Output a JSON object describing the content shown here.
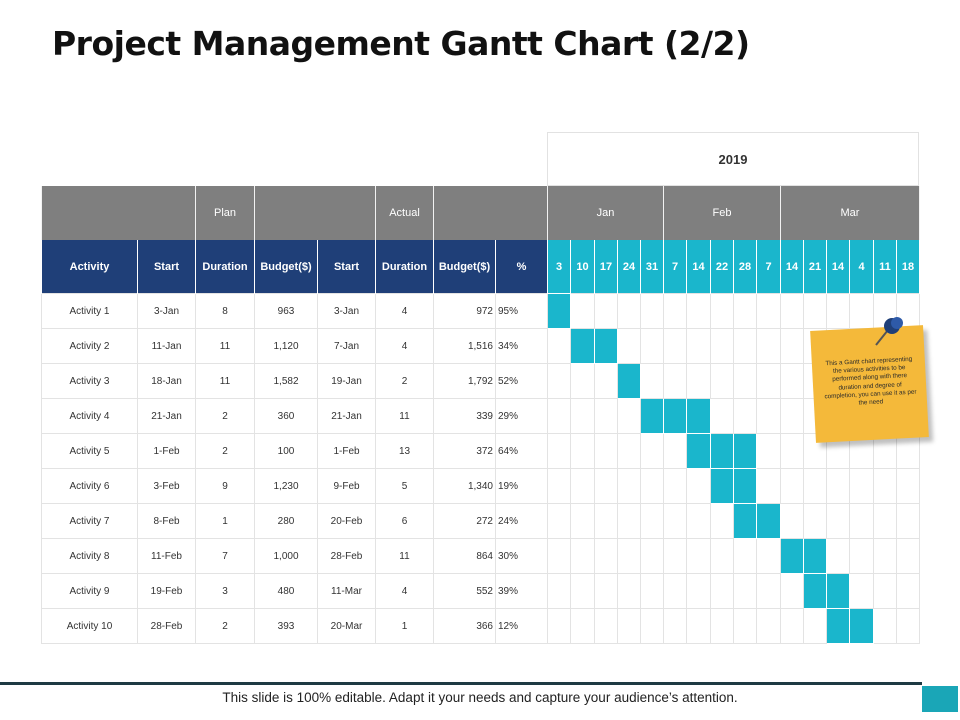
{
  "title": "Project Management Gantt Chart (2/2)",
  "year": "2019",
  "groups": {
    "plan": "Plan",
    "actual": "Actual"
  },
  "months": [
    "Jan",
    "Feb",
    "Mar"
  ],
  "columns": [
    "Activity",
    "Start",
    "Duration",
    "Budget($)",
    "Start",
    "Duration",
    "Budget($)",
    "%"
  ],
  "weeks": [
    "3",
    "10",
    "17",
    "24",
    "31",
    "7",
    "14",
    "22",
    "28",
    "7",
    "14",
    "21",
    "14",
    "4",
    "11",
    "18"
  ],
  "rows": [
    {
      "activity": "Activity 1",
      "plan_start": "3-Jan",
      "plan_duration": "8",
      "plan_budget": "963",
      "actual_start": "3-Jan",
      "actual_duration": "4",
      "actual_budget": "972",
      "pct": "95%",
      "filled": [
        0
      ]
    },
    {
      "activity": "Activity 2",
      "plan_start": "11-Jan",
      "plan_duration": "11",
      "plan_budget": "1,120",
      "actual_start": "7-Jan",
      "actual_duration": "4",
      "actual_budget": "1,516",
      "pct": "34%",
      "filled": [
        1,
        2
      ]
    },
    {
      "activity": "Activity 3",
      "plan_start": "18-Jan",
      "plan_duration": "11",
      "plan_budget": "1,582",
      "actual_start": "19-Jan",
      "actual_duration": "2",
      "actual_budget": "1,792",
      "pct": "52%",
      "filled": [
        3
      ]
    },
    {
      "activity": "Activity 4",
      "plan_start": "21-Jan",
      "plan_duration": "2",
      "plan_budget": "360",
      "actual_start": "21-Jan",
      "actual_duration": "11",
      "actual_budget": "339",
      "pct": "29%",
      "filled": [
        4,
        5,
        6
      ]
    },
    {
      "activity": "Activity 5",
      "plan_start": "1-Feb",
      "plan_duration": "2",
      "plan_budget": "100",
      "actual_start": "1-Feb",
      "actual_duration": "13",
      "actual_budget": "372",
      "pct": "64%",
      "filled": [
        6,
        7,
        8
      ]
    },
    {
      "activity": "Activity 6",
      "plan_start": "3-Feb",
      "plan_duration": "9",
      "plan_budget": "1,230",
      "actual_start": "9-Feb",
      "actual_duration": "5",
      "actual_budget": "1,340",
      "pct": "19%",
      "filled": [
        7,
        8
      ]
    },
    {
      "activity": "Activity 7",
      "plan_start": "8-Feb",
      "plan_duration": "1",
      "plan_budget": "280",
      "actual_start": "20-Feb",
      "actual_duration": "6",
      "actual_budget": "272",
      "pct": "24%",
      "filled": [
        8,
        9
      ]
    },
    {
      "activity": "Activity 8",
      "plan_start": "11-Feb",
      "plan_duration": "7",
      "plan_budget": "1,000",
      "actual_start": "28-Feb",
      "actual_duration": "11",
      "actual_budget": "864",
      "pct": "30%",
      "filled": [
        10,
        11
      ]
    },
    {
      "activity": "Activity 9",
      "plan_start": "19-Feb",
      "plan_duration": "3",
      "plan_budget": "480",
      "actual_start": "11-Mar",
      "actual_duration": "4",
      "actual_budget": "552",
      "pct": "39%",
      "filled": [
        11,
        12
      ]
    },
    {
      "activity": "Activity 10",
      "plan_start": "28-Feb",
      "plan_duration": "2",
      "plan_budget": "393",
      "actual_start": "20-Mar",
      "actual_duration": "1",
      "actual_budget": "366",
      "pct": "12%",
      "filled": [
        12,
        13
      ]
    }
  ],
  "note": "This a Gantt chart representing the various activities to be performed along with there duration and degree of completion, you can use it as per the need",
  "footer": "This slide is 100% editable. Adapt it your needs and capture your audience’s attention.",
  "colors": {
    "header_blue": "#1f3f78",
    "accent_teal": "#1ab6cc",
    "group_gray": "#7f7f7f",
    "note_yellow": "#f4b93a"
  }
}
